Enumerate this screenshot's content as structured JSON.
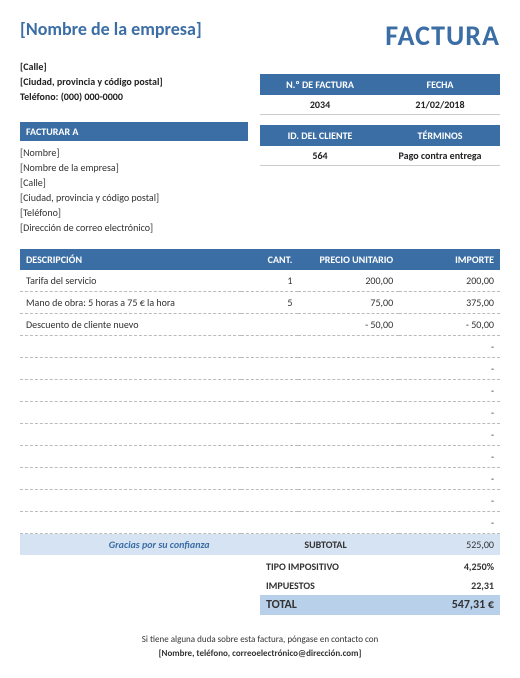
{
  "header": {
    "company_name": "[Nombre de la empresa]",
    "invoice_title": "FACTURA",
    "street": "[Calle]",
    "city_zip": "[Ciudad, provincia y código postal]",
    "phone": "Teléfono: (000) 000-0000"
  },
  "meta1": {
    "invoice_no_label": "N.º DE FACTURA",
    "invoice_no": "2034",
    "date_label": "FECHA",
    "date": "21/02/2018"
  },
  "meta2": {
    "client_id_label": "ID. DEL CLIENTE",
    "client_id": "564",
    "terms_label": "TÉRMINOS",
    "terms": "Pago contra entrega"
  },
  "billto": {
    "header": "FACTURAR A",
    "name": "[Nombre]",
    "company": "[Nombre de la empresa]",
    "street": "[Calle]",
    "city_zip": "[Ciudad, provincia y código postal]",
    "phone": "[Teléfono]",
    "email": "[Dirección de correo electrónico]"
  },
  "table": {
    "headers": {
      "desc": "DESCRIPCIÓN",
      "qty": "CANT.",
      "unit": "PRECIO UNITARIO",
      "amount": "IMPORTE"
    },
    "rows": [
      {
        "desc": "Tarifa del servicio",
        "qty": "1",
        "unit": "200,00",
        "amount": "200,00"
      },
      {
        "desc": "Mano de obra: 5 horas a 75 €  la hora",
        "qty": "5",
        "unit": "75,00",
        "amount": "375,00"
      },
      {
        "desc": "Descuento de cliente nuevo",
        "qty": "",
        "unit": "-        50,00",
        "amount": "-        50,00"
      },
      {
        "desc": "",
        "qty": "",
        "unit": "",
        "amount": "-"
      },
      {
        "desc": "",
        "qty": "",
        "unit": "",
        "amount": "-"
      },
      {
        "desc": "",
        "qty": "",
        "unit": "",
        "amount": "-"
      },
      {
        "desc": "",
        "qty": "",
        "unit": "",
        "amount": "-"
      },
      {
        "desc": "",
        "qty": "",
        "unit": "",
        "amount": "-"
      },
      {
        "desc": "",
        "qty": "",
        "unit": "",
        "amount": "-"
      },
      {
        "desc": "",
        "qty": "",
        "unit": "",
        "amount": "-"
      },
      {
        "desc": "",
        "qty": "",
        "unit": "",
        "amount": "-"
      },
      {
        "desc": "",
        "qty": "",
        "unit": "",
        "amount": "-"
      }
    ],
    "thanks": "Gracias por su confianza"
  },
  "totals": {
    "subtotal_label": "SUBTOTAL",
    "subtotal": "525,00",
    "tax_rate_label": "TIPO IMPOSITIVO",
    "tax_rate": "4,250%",
    "tax_label": "IMPUESTOS",
    "tax": "22,31",
    "total_label": "TOTAL",
    "total": "547,31 €"
  },
  "footer": {
    "line1": "Si tiene alguna duda sobre esta factura, póngase en contacto con",
    "line2": "[Nombre, teléfono, correoelectrónico@dirección.com]"
  },
  "colors": {
    "primary": "#3b6ea5",
    "light_blue": "#d6e3f3",
    "mid_blue": "#b8d0ea"
  }
}
